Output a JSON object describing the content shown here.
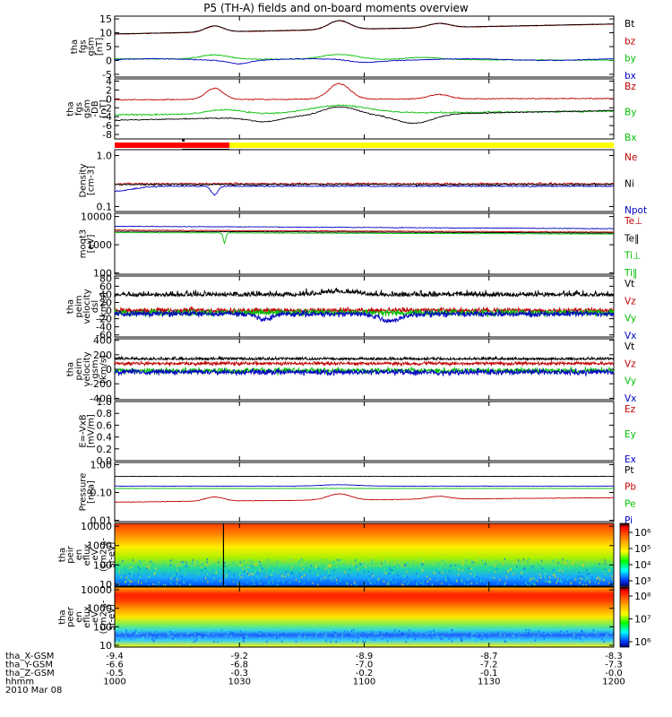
{
  "title": "P5 (TH-A) fields and on-board moments overview",
  "panels": [
    {
      "id": "fgs",
      "ylabel": [
        "tha",
        "fgs",
        "gsm",
        "[nT]"
      ],
      "ticks": [
        "15",
        "10",
        "5",
        "0",
        "-5"
      ],
      "tick_values": [
        15,
        10,
        5,
        0,
        -5
      ],
      "ylim": [
        -6,
        16
      ],
      "legend": [
        {
          "label": "Bt",
          "color": "#000000"
        },
        {
          "label": "bz",
          "color": "#c00000"
        },
        {
          "label": "by",
          "color": "#00c000"
        },
        {
          "label": "bx",
          "color": "#0000c0"
        }
      ]
    },
    {
      "id": "fgl",
      "ylabel": [
        "tha",
        "fgs",
        "gsm",
        "-DB",
        "[nT]"
      ],
      "ticks": [
        "4",
        "2",
        "0",
        "-2",
        "-4",
        "-6",
        "-8"
      ],
      "tick_values": [
        4,
        2,
        0,
        -2,
        -4,
        -6,
        -8
      ],
      "ylim": [
        -9,
        4.5
      ],
      "legend": [
        {
          "label": "Bz",
          "color": "#c00000"
        },
        {
          "label": "By",
          "color": "#00c000"
        },
        {
          "label": "Bx",
          "color": "#00c000"
        }
      ]
    },
    {
      "id": "density",
      "ylabel": [
        "Density",
        "[cm-3]"
      ],
      "ticks": [
        "1.0",
        "0.1"
      ],
      "tick_values": [
        1.0,
        0.1
      ],
      "ylim": [
        0.08,
        1.3
      ],
      "scale": "log",
      "legend": [
        {
          "label": "Ne",
          "color": "#c00000"
        },
        {
          "label": "Ni",
          "color": "#000000"
        },
        {
          "label": "Npot",
          "color": "#0000c0"
        }
      ]
    },
    {
      "id": "temp",
      "ylabel": [
        "moqt3",
        "[eV]"
      ],
      "ticks": [
        "10000",
        "1000",
        "100"
      ],
      "tick_values": [
        10000,
        1000,
        100
      ],
      "ylim": [
        90,
        13000
      ],
      "scale": "log",
      "legend": [
        {
          "label": "Te⊥",
          "color": "#c00000"
        },
        {
          "label": "Te‖",
          "color": "#000000"
        },
        {
          "label": "Ti⊥",
          "color": "#00c000"
        },
        {
          "label": "Ti‖",
          "color": "#00c000"
        }
      ]
    },
    {
      "id": "velocity_e",
      "ylabel": [
        "tha",
        "peim",
        "velocity",
        "dsl",
        "[km/s]"
      ],
      "ticks": [
        "80",
        "60",
        "40",
        "20",
        "0",
        "-20",
        "-40",
        "-60"
      ],
      "tick_values": [
        80,
        60,
        40,
        20,
        0,
        -20,
        -40,
        -60
      ],
      "ylim": [
        -65,
        85
      ],
      "legend": [
        {
          "label": "Vt",
          "color": "#000000"
        },
        {
          "label": "Vz",
          "color": "#c00000"
        },
        {
          "label": "Vy",
          "color": "#00c000"
        },
        {
          "label": "Vx",
          "color": "#0000c0"
        }
      ]
    },
    {
      "id": "velocity_i",
      "ylabel": [
        "tha",
        "peim",
        "velocity",
        "gsm",
        "[km/s]"
      ],
      "ticks": [
        "400",
        "200",
        "0",
        "-200",
        "-400"
      ],
      "tick_values": [
        400,
        200,
        0,
        -200,
        -400
      ],
      "ylim": [
        -420,
        420
      ],
      "legend": [
        {
          "label": "Vt",
          "color": "#000000"
        },
        {
          "label": "Vz",
          "color": "#c00000"
        },
        {
          "label": "Vy",
          "color": "#00c000"
        },
        {
          "label": "Vx",
          "color": "#0000c0"
        }
      ]
    },
    {
      "id": "efield",
      "ylabel": [
        "E=-VxB",
        "[mV/m]"
      ],
      "ticks": [
        "1.0",
        "0.8",
        "0.6",
        "0.4",
        "0.2",
        "0.0"
      ],
      "tick_values": [
        1.0,
        0.8,
        0.6,
        0.4,
        0.2,
        0.0
      ],
      "ylim": [
        0,
        1.0
      ],
      "legend": [
        {
          "label": "Ez",
          "color": "#c00000"
        },
        {
          "label": "Ey",
          "color": "#00c000"
        },
        {
          "label": "Ex",
          "color": "#0000c0"
        }
      ]
    },
    {
      "id": "pressure",
      "ylabel": [
        "Pressure",
        "[nPa]"
      ],
      "ticks": [
        "1.00",
        "0.10",
        "0.01"
      ],
      "tick_values": [
        1.0,
        0.1,
        0.01
      ],
      "ylim": [
        0.009,
        1.2
      ],
      "scale": "log",
      "legend": [
        {
          "label": "Pt",
          "color": "#000000"
        },
        {
          "label": "Pb",
          "color": "#c00000"
        },
        {
          "label": "Pe",
          "color": "#00c000"
        },
        {
          "label": "Pi",
          "color": "#0000c0"
        }
      ]
    },
    {
      "id": "ion_spec",
      "ylabel": [
        "tha",
        "peir",
        "en",
        "eflux",
        "eV",
        "(cm2-s-",
        "sr-eV)"
      ],
      "ticks": [
        "10000",
        "1000",
        "100",
        "10"
      ],
      "tick_values": [
        10000,
        1000,
        100,
        10
      ],
      "ylim": [
        8,
        14000
      ],
      "scale": "log",
      "colorbar": [
        "10⁶",
        "10⁵",
        "10⁴",
        "10³"
      ]
    },
    {
      "id": "elec_spec",
      "ylabel": [
        "tha",
        "peer",
        "en",
        "eflux",
        "eV",
        "(cm2-s-",
        "sr-eV)"
      ],
      "ticks": [
        "10000",
        "1000",
        "100",
        "10"
      ],
      "tick_values": [
        10000,
        1000,
        100,
        10
      ],
      "ylim": [
        8,
        14000
      ],
      "scale": "log",
      "colorbar": [
        "10⁸",
        "10⁷",
        "10⁶"
      ]
    }
  ],
  "footer": {
    "rows": [
      {
        "label": "tha_X-GSM",
        "values": [
          "-9.4",
          "-9.2",
          "-8.9",
          "-8.7",
          "-8.3"
        ]
      },
      {
        "label": "tha_Y-GSM",
        "values": [
          "-6.6",
          "-6.8",
          "-7.0",
          "-7.2",
          "-7.3"
        ]
      },
      {
        "label": "tha_Z-GSM",
        "values": [
          "-0.5",
          "-0.3",
          "-0.2",
          "-0.1",
          "-0.0"
        ]
      },
      {
        "label": "hhmm",
        "values": [
          "1000",
          "1030",
          "1100",
          "1130",
          "1200"
        ]
      }
    ],
    "date": "2010 Mar 08",
    "tick_times": [
      0,
      0.25,
      0.5,
      0.75,
      1.0
    ]
  },
  "colors": {
    "mode_bar_red": "#ff0000",
    "mode_bar_yellow": "#ffff00"
  }
}
